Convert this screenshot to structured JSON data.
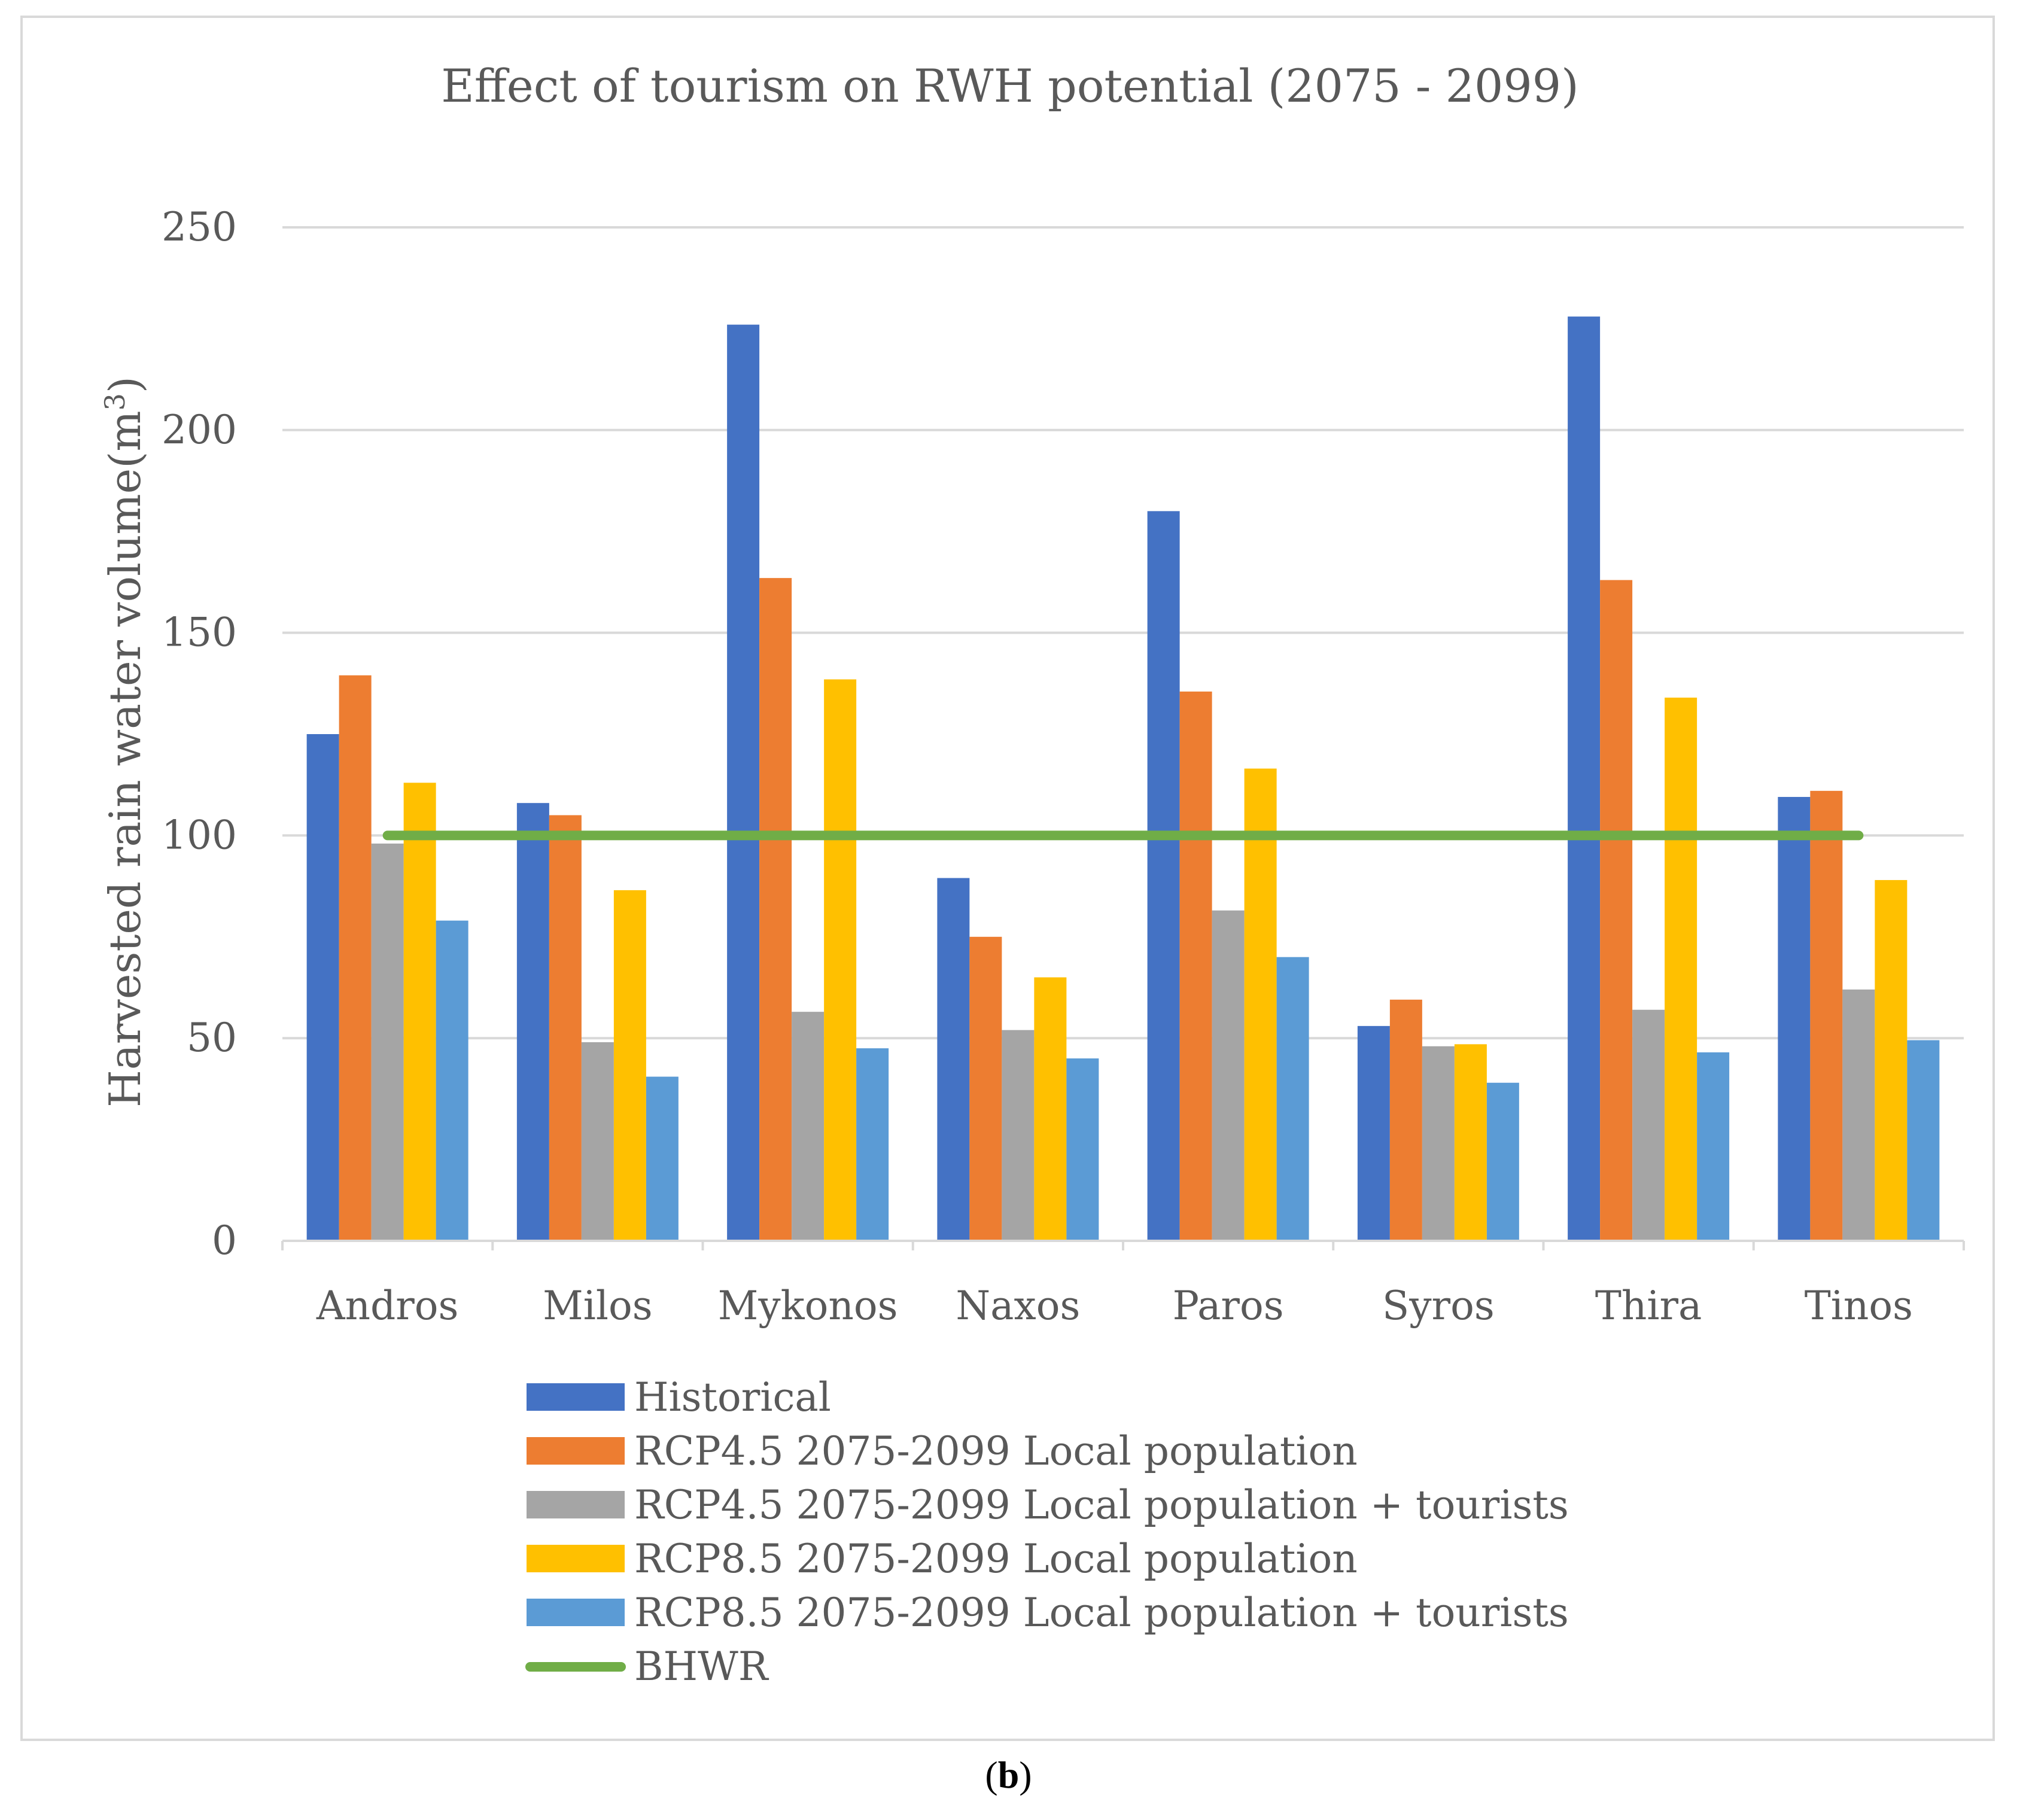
{
  "chart_data": {
    "type": "bar",
    "title": "Effect of tourism on RWH potential (2075 - 2099)",
    "ylabel": "Harvested rain water volume(m",
    "ylabel_superscript": "3",
    "ylabel_suffix": ")",
    "xlabel": "",
    "ylim": [
      0,
      250
    ],
    "yticks": [
      0,
      50,
      100,
      150,
      200,
      250
    ],
    "grid": true,
    "legend_position": "bottom",
    "categories": [
      "Andros",
      "Milos",
      "Mykonos",
      "Naxos",
      "Paros",
      "Syros",
      "Thira",
      "Tinos"
    ],
    "series": [
      {
        "name": "Historical",
        "color": "#4472c4",
        "values": [
          125,
          108,
          226,
          89.5,
          180,
          53,
          228,
          109.5
        ]
      },
      {
        "name": "RCP4.5 2075-2099 Local population",
        "color": "#ed7d31",
        "values": [
          139.5,
          105,
          163.5,
          75,
          135.5,
          59.5,
          163,
          111
        ]
      },
      {
        "name": "RCP4.5 2075-2099 Local population + tourists",
        "color": "#a5a5a5",
        "values": [
          98,
          49,
          56.5,
          52,
          81.5,
          48,
          57,
          62
        ]
      },
      {
        "name": "RCP8.5 2075-2099 Local population",
        "color": "#ffc000",
        "values": [
          113,
          86.5,
          138.5,
          65,
          116.5,
          48.5,
          134,
          89
        ]
      },
      {
        "name": "RCP8.5 2075-2099 Local population + tourists",
        "color": "#5b9bd5",
        "values": [
          79,
          40.5,
          47.5,
          45,
          70,
          39,
          46.5,
          49.5
        ]
      }
    ],
    "reference_line": {
      "name": "BHWR",
      "color": "#70ad47",
      "value": 100
    }
  },
  "caption": {
    "open": "(",
    "label": "b",
    "close": ")"
  }
}
